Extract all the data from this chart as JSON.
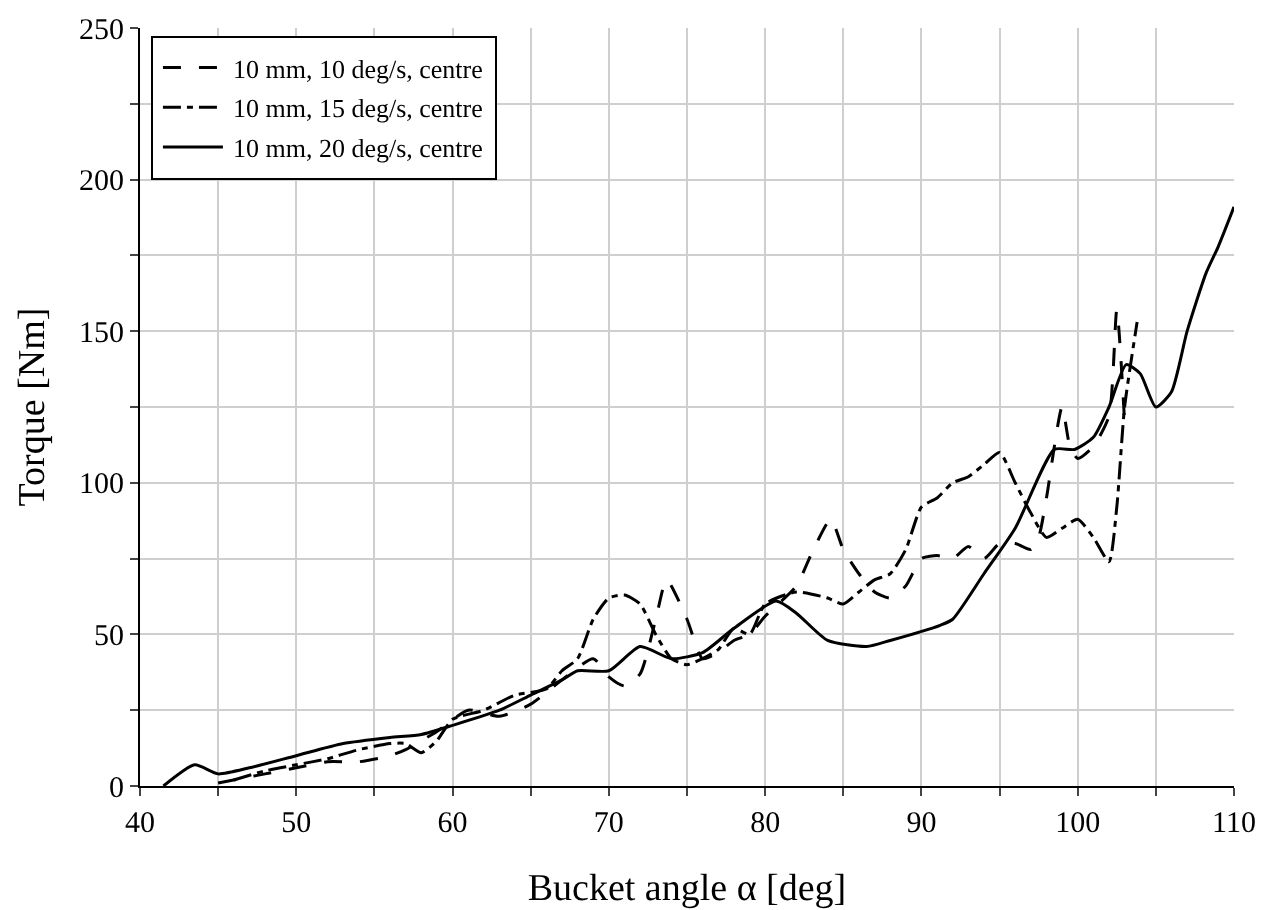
{
  "chart_data": {
    "type": "line",
    "xlabel": "Bucket angle α [deg]",
    "ylabel": "Torque [Nm]",
    "xlim": [
      40,
      110
    ],
    "xticks": [
      40,
      {
        "value": 45,
        "label": null
      },
      50,
      {
        "value": 55,
        "label": null
      },
      60,
      {
        "value": 65,
        "label": null
      },
      70,
      {
        "value": 75,
        "label": null
      },
      80,
      {
        "value": 85,
        "label": null
      },
      90,
      {
        "value": 95,
        "label": null
      },
      100,
      {
        "value": 105,
        "label": null
      },
      110
    ],
    "ylim": [
      0,
      250
    ],
    "yticks": [
      0,
      {
        "value": 25,
        "label": null
      },
      50,
      {
        "value": 75,
        "label": null
      },
      100,
      {
        "value": 125,
        "label": null
      },
      150,
      {
        "value": 175,
        "label": null
      },
      200,
      {
        "value": 225,
        "label": null
      },
      250
    ],
    "grid": true,
    "legend": "top left",
    "marker": "none",
    "series": [
      {
        "name": "10 mm, 10 deg/s, centre",
        "color": "#000000",
        "line_style": "dashed",
        "x": [
          45,
          47,
          48,
          50,
          52,
          54,
          56,
          57,
          59,
          61,
          63,
          65,
          67,
          69,
          70,
          71,
          72,
          73,
          73.7,
          75,
          76,
          77,
          78,
          79,
          80,
          82,
          83,
          84.2,
          85,
          86,
          87,
          88,
          89,
          90,
          91,
          92,
          93,
          94,
          95,
          96,
          97,
          97.5,
          98,
          99,
          99.5,
          100,
          101,
          102,
          102.5,
          103
        ],
        "values": [
          1,
          3,
          4,
          6,
          8,
          8,
          10,
          12,
          18,
          25,
          23,
          27,
          35,
          42,
          36,
          33,
          37,
          55,
          68,
          55,
          42,
          44,
          48,
          50,
          56,
          66,
          77,
          88,
          78,
          70,
          64,
          62,
          66,
          75,
          76,
          75,
          79,
          75,
          80,
          80,
          78,
          82,
          95,
          125,
          112,
          108,
          112,
          122,
          157,
          120
        ]
      },
      {
        "name": "10 mm, 15 deg/s, centre",
        "color": "#000000",
        "line_style": "dashdot",
        "x": [
          46,
          48,
          50,
          52,
          54,
          56,
          57,
          58,
          59,
          60,
          62,
          64,
          66,
          67,
          68,
          69,
          70,
          71,
          72,
          73,
          74,
          75,
          76,
          77,
          78,
          79,
          80,
          82,
          84,
          85,
          86,
          87,
          88,
          89,
          90,
          91,
          92,
          93,
          94,
          95,
          96,
          97,
          98,
          99,
          100,
          101,
          102,
          102.5,
          103,
          103.8
        ],
        "values": [
          2,
          5,
          7,
          9,
          12,
          14,
          14,
          11,
          15,
          22,
          25,
          30,
          32,
          38,
          42,
          55,
          62,
          63,
          60,
          50,
          42,
          40,
          42,
          45,
          52,
          50,
          60,
          64,
          62,
          60,
          64,
          68,
          70,
          78,
          92,
          95,
          100,
          102,
          106,
          110,
          100,
          90,
          82,
          85,
          88,
          82,
          74,
          92,
          125,
          153
        ]
      },
      {
        "name": "10 mm, 20 deg/s, centre",
        "color": "#000000",
        "line_style": "solid",
        "x": [
          41.5,
          43.5,
          45,
          47,
          50,
          53,
          56,
          58,
          60,
          63,
          65,
          67,
          68,
          70,
          72,
          74,
          76,
          78,
          80.7,
          82,
          84,
          86.5,
          88,
          91.2,
          92,
          94,
          96,
          98.5,
          99.8,
          101,
          102,
          103.1,
          104,
          105,
          106,
          107,
          108.2,
          109,
          110
        ],
        "values": [
          0,
          7,
          4,
          6,
          10,
          14,
          16,
          17,
          20,
          25,
          30,
          35,
          38,
          38,
          46,
          42,
          44,
          52,
          61,
          57,
          48,
          46,
          48,
          53,
          55,
          70,
          85,
          111,
          111,
          115,
          125,
          139,
          136,
          125,
          130,
          150,
          169,
          178,
          191
        ]
      }
    ]
  }
}
